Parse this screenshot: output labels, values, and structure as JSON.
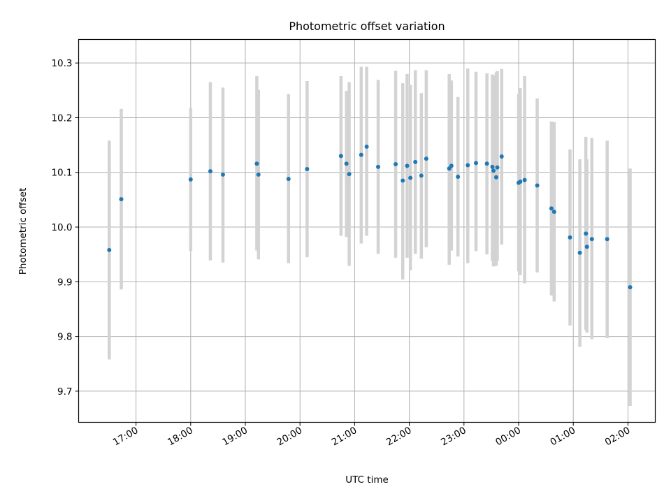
{
  "chart_data": {
    "type": "scatter",
    "title": "Photometric offset variation",
    "xlabel": "UTC time",
    "ylabel": "Photometric offset",
    "x_unit": "hours since 00:00 UTC",
    "xlim": [
      -8.05,
      2.5
    ],
    "ylim": [
      9.643,
      10.343
    ],
    "xticks": [
      {
        "value": -7,
        "label": "17:00"
      },
      {
        "value": -6,
        "label": "18:00"
      },
      {
        "value": -5,
        "label": "19:00"
      },
      {
        "value": -4,
        "label": "20:00"
      },
      {
        "value": -3,
        "label": "21:00"
      },
      {
        "value": -2,
        "label": "22:00"
      },
      {
        "value": -1,
        "label": "23:00"
      },
      {
        "value": 0,
        "label": "00:00"
      },
      {
        "value": 1,
        "label": "01:00"
      },
      {
        "value": 2,
        "label": "02:00"
      }
    ],
    "yticks": [
      {
        "value": 9.7,
        "label": "9.7"
      },
      {
        "value": 9.8,
        "label": "9.8"
      },
      {
        "value": 9.9,
        "label": "9.9"
      },
      {
        "value": 10.0,
        "label": "10.0"
      },
      {
        "value": 10.1,
        "label": "10.1"
      },
      {
        "value": 10.2,
        "label": "10.2"
      },
      {
        "value": 10.3,
        "label": "10.3"
      }
    ],
    "grid": true,
    "point_color": "#1f77b4",
    "errorbar_color": "#d3d3d3",
    "points": [
      {
        "x": -7.49,
        "y": 9.958,
        "lo": 9.758,
        "hi": 10.158
      },
      {
        "x": -7.27,
        "y": 10.051,
        "lo": 9.886,
        "hi": 10.216
      },
      {
        "x": -6.0,
        "y": 10.087,
        "lo": 9.956,
        "hi": 10.218
      },
      {
        "x": -5.64,
        "y": 10.102,
        "lo": 9.939,
        "hi": 10.265
      },
      {
        "x": -5.41,
        "y": 10.096,
        "lo": 9.935,
        "hi": 10.255
      },
      {
        "x": -4.79,
        "y": 10.116,
        "lo": 9.957,
        "hi": 10.276
      },
      {
        "x": -4.76,
        "y": 10.096,
        "lo": 9.941,
        "hi": 10.251
      },
      {
        "x": -4.21,
        "y": 10.088,
        "lo": 9.934,
        "hi": 10.243
      },
      {
        "x": -3.87,
        "y": 10.106,
        "lo": 9.945,
        "hi": 10.267
      },
      {
        "x": -3.25,
        "y": 10.13,
        "lo": 9.984,
        "hi": 10.276
      },
      {
        "x": -3.15,
        "y": 10.116,
        "lo": 9.982,
        "hi": 10.249
      },
      {
        "x": -3.1,
        "y": 10.097,
        "lo": 9.929,
        "hi": 10.265
      },
      {
        "x": -2.88,
        "y": 10.132,
        "lo": 9.97,
        "hi": 10.293
      },
      {
        "x": -2.78,
        "y": 10.147,
        "lo": 9.984,
        "hi": 10.293
      },
      {
        "x": -2.57,
        "y": 10.11,
        "lo": 9.951,
        "hi": 10.269
      },
      {
        "x": -2.25,
        "y": 10.115,
        "lo": 9.944,
        "hi": 10.286
      },
      {
        "x": -2.12,
        "y": 10.085,
        "lo": 9.904,
        "hi": 10.263
      },
      {
        "x": -2.04,
        "y": 10.112,
        "lo": 9.944,
        "hi": 10.28
      },
      {
        "x": -1.98,
        "y": 10.09,
        "lo": 9.921,
        "hi": 10.26
      },
      {
        "x": -1.89,
        "y": 10.119,
        "lo": 9.951,
        "hi": 10.287
      },
      {
        "x": -1.78,
        "y": 10.094,
        "lo": 9.942,
        "hi": 10.245
      },
      {
        "x": -1.69,
        "y": 10.125,
        "lo": 9.963,
        "hi": 10.287
      },
      {
        "x": -1.27,
        "y": 10.107,
        "lo": 9.931,
        "hi": 10.28
      },
      {
        "x": -1.23,
        "y": 10.112,
        "lo": 9.957,
        "hi": 10.268
      },
      {
        "x": -1.11,
        "y": 10.092,
        "lo": 9.946,
        "hi": 10.238
      },
      {
        "x": -0.93,
        "y": 10.113,
        "lo": 9.934,
        "hi": 10.29
      },
      {
        "x": -0.78,
        "y": 10.117,
        "lo": 9.956,
        "hi": 10.284
      },
      {
        "x": -0.58,
        "y": 10.116,
        "lo": 9.95,
        "hi": 10.281
      },
      {
        "x": -0.48,
        "y": 10.11,
        "lo": 9.938,
        "hi": 10.279
      },
      {
        "x": -0.46,
        "y": 10.103,
        "lo": 9.928,
        "hi": 10.277
      },
      {
        "x": -0.41,
        "y": 10.091,
        "lo": 9.929,
        "hi": 10.283
      },
      {
        "x": -0.39,
        "y": 10.109,
        "lo": 9.938,
        "hi": 10.285
      },
      {
        "x": -0.31,
        "y": 10.129,
        "lo": 9.968,
        "hi": 10.289
      },
      {
        "x": 0.0,
        "y": 10.081,
        "lo": 9.919,
        "hi": 10.243
      },
      {
        "x": 0.03,
        "y": 10.083,
        "lo": 9.912,
        "hi": 10.254
      },
      {
        "x": 0.11,
        "y": 10.086,
        "lo": 9.897,
        "hi": 10.276
      },
      {
        "x": 0.34,
        "y": 10.076,
        "lo": 9.917,
        "hi": 10.235
      },
      {
        "x": 0.6,
        "y": 10.034,
        "lo": 9.875,
        "hi": 10.193
      },
      {
        "x": 0.65,
        "y": 10.028,
        "lo": 9.864,
        "hi": 10.192
      },
      {
        "x": 0.94,
        "y": 9.981,
        "lo": 9.82,
        "hi": 10.142
      },
      {
        "x": 1.12,
        "y": 9.953,
        "lo": 9.781,
        "hi": 10.124
      },
      {
        "x": 1.23,
        "y": 9.988,
        "lo": 9.812,
        "hi": 10.165
      },
      {
        "x": 1.25,
        "y": 9.964,
        "lo": 9.807,
        "hi": 10.124
      },
      {
        "x": 1.34,
        "y": 9.978,
        "lo": 9.795,
        "hi": 10.163
      },
      {
        "x": 1.62,
        "y": 9.978,
        "lo": 9.797,
        "hi": 10.158
      },
      {
        "x": 2.04,
        "y": 9.89,
        "lo": 9.673,
        "hi": 10.107
      }
    ]
  }
}
